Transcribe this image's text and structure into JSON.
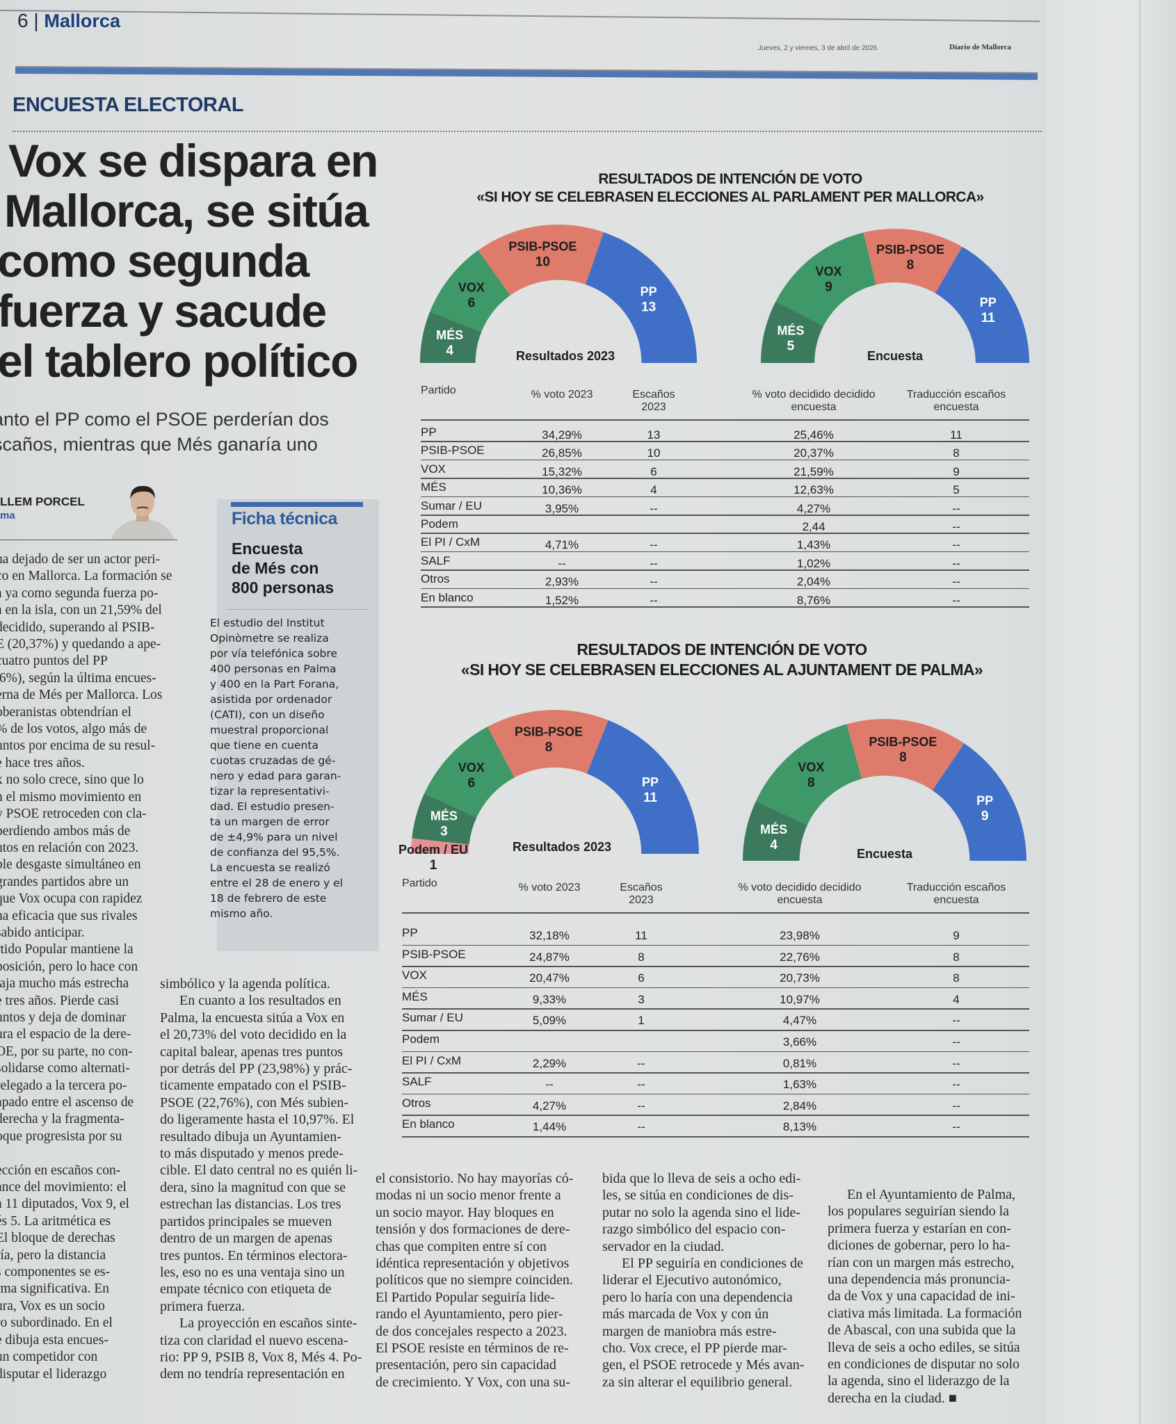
{
  "header": {
    "page_number": "6",
    "section_name": "Mallorca",
    "date": "Jueves, 2 y viernes, 3 de abril de 2026",
    "newspaper": "Diario de Mallorca"
  },
  "kicker": "ENCUESTA ELECTORAL",
  "headline": [
    "Vox se dispara en",
    "Mallorca, se sitúa",
    "como segunda",
    "fuerza y sacude",
    "el tablero político"
  ],
  "subtitle": [
    "anto el PP como el PSOE perderían dos",
    "scaños, mientras que Més ganaría uno"
  ],
  "byline": {
    "author": "LLEM PORCEL",
    "city": "ma"
  },
  "ficha": {
    "title": "Ficha técnica",
    "heading": [
      "Encuesta",
      "de Més con",
      "800 personas"
    ],
    "body": [
      "El estudio del Institut",
      "Opinòmetre se realiza",
      "por vía telefónica sobre",
      "400 personas en Palma",
      "y 400 en la Part Forana,",
      "asistida por ordenador",
      "(CATI), con un diseño",
      "muestral proporcional",
      "que tiene en cuenta",
      "cuotas cruzadas de gé-",
      "nero y edad para garan-",
      "tizar la representativi-",
      "dad. El estudio presen-",
      "ta un margen de error",
      "de ±4,9% para un nivel",
      "de confianza del 95,5%.",
      "La encuesta se realizó",
      "entre el 28 de enero y el",
      "18 de febrero de este",
      "mismo año."
    ]
  },
  "columns": {
    "col1": [
      "ha dejado de ser un actor peri-",
      "co en Mallorca. La formación se",
      "a ya como segunda fuerza po-",
      "a en la isla, con un 21,59% del",
      "decidido, superando al PSIB-",
      "E (20,37%) y quedando a ape-",
      "cuatro puntos del PP",
      ",6%), según la última encues-",
      "erna de Més per Mallorca. Los",
      "oberanistas obtendrían el",
      "% de los votos, algo más de",
      "untos por encima de su resul-",
      "e hace tres años.",
      "x no solo crece, sino que lo",
      "n el mismo movimiento en",
      "y PSOE retroceden con cla-",
      "perdiendo ambos más de",
      "ntos en relación con 2023.",
      "ble desgaste simultáneo en",
      "grandes partidos abre un",
      "que Vox ocupa con rapidez",
      "na eficacia que sus rivales",
      "sabido anticipar.",
      "rtido Popular mantiene la",
      "posición, pero lo hace con",
      "taja mucho más estrecha",
      "e tres años. Pierde casi",
      "untos y deja de dominar",
      "ura el espacio de la dere-",
      "OE, por su parte, no con-",
      "solidarse como alternati-",
      "relegado a la tercera po-",
      "apado entre el ascenso de",
      "derecha y la fragmenta-",
      "oque progresista por su",
      "",
      "ección en escaños con-",
      "ance del movimiento: el",
      "a 11 diputados, Vox 9, el",
      "és 5. La aritmética es",
      "El bloque de derechas",
      "ría, pero la distancia",
      "s componentes se es-",
      "rma significativa. En",
      "ura, Vox es un socio",
      "ro subordinado. En el",
      "e dibuja esta encues-",
      "un competidor con",
      "disputar el liderazgo"
    ],
    "col2": [
      "simbólico y la agenda política.",
      ">En cuanto a los resultados en",
      "Palma, la encuesta sitúa a Vox en",
      "el 20,73% del voto decidido en la",
      "capital balear, apenas tres puntos",
      "por detrás del PP (23,98%) y prác-",
      "ticamente empatado con el PSIB-",
      "PSOE (22,76%), con Més subien-",
      "do ligeramente hasta el 10,97%. El",
      "resultado dibuja un Ayuntamien-",
      "to más disputado y menos prede-",
      "cible. El dato central no es quién li-",
      "dera, sino la magnitud con que se",
      "estrechan las distancias. Los tres",
      "partidos principales se mueven",
      "dentro de un margen de apenas",
      "tres puntos. En términos electora-",
      "les, eso no es una ventaja sino un",
      "empate técnico con etiqueta de",
      "primera fuerza.",
      ">La proyección en escaños sinte-",
      "tiza con claridad el nuevo escena-",
      "rio: PP 9, PSIB 8, Vox 8, Més 4. Po-",
      "dem no tendría representación en"
    ],
    "col3": [
      "el consistorio. No hay mayorías có-",
      "modas ni un socio menor frente a",
      "un socio mayor. Hay bloques en",
      "tensión y dos formaciones de dere-",
      "chas que compiten entre sí con",
      "idéntica representación y objetivos",
      "políticos que no siempre coinciden.",
      "El Partido Popular seguiría lide-",
      "rando el Ayuntamiento, pero pier-",
      "de dos concejales respecto a 2023.",
      "El PSOE resiste en términos de re-",
      "presentación, pero sin capacidad",
      "de crecimiento. Y Vox, con una su-"
    ],
    "col4": [
      "bida que lo lleva de seis a ocho edi-",
      "les, se sitúa en condiciones de dis-",
      "putar no solo la agenda sino el lide-",
      "razgo simbólico del espacio con-",
      "servador en la ciudad.",
      ">El PP seguiría en condiciones de",
      "liderar el Ejecutivo autonómico,",
      "pero lo haría con una dependencia",
      "más marcada de Vox y con ún",
      "margen de maniobra más estre-",
      "cho. Vox crece, el PP pierde mar-",
      "gen, el PSOE retrocede y Més avan-",
      "za sin alterar el equilibrio general."
    ],
    "col5": [
      ">En el Ayuntamiento de Palma,",
      "los populares seguirían siendo la",
      "primera fuerza y estarían en con-",
      "diciones de gobernar, pero lo ha-",
      "rían con un margen más estrecho,",
      "una dependencia más pronuncia-",
      "da de Vox y una capacidad de ini-",
      "ciativa más limitada. La formación",
      "de Abascal, con una subida que la",
      "lleva de seis a ocho ediles, se sitúa",
      "en condiciones de disputar no solo",
      "la agenda, sino el liderazgo de la",
      "derecha en la ciudad. ■"
    ]
  },
  "colors": {
    "MÉS": "#3b7a5c",
    "VOX": "#3e9867",
    "PSIB-PSOE": "#df7b6b",
    "PP": "#3f6fc6",
    "Podem / EU": "#e39191"
  },
  "chart_data": [
    {
      "type": "hemicycle",
      "title": "RESULTADOS DE INTENCIÓN DE VOTO",
      "subtitle": "«SI HOY SE CELEBRASEN ELECCIONES AL PARLAMENT PER MALLORCA»",
      "charts": [
        {
          "label": "Resultados 2023",
          "seats": [
            {
              "party": "MÉS",
              "seats": 4
            },
            {
              "party": "VOX",
              "seats": 6
            },
            {
              "party": "PSIB-PSOE",
              "seats": 10
            },
            {
              "party": "PP",
              "seats": 13
            }
          ]
        },
        {
          "label": "Encuesta",
          "seats": [
            {
              "party": "MÉS",
              "seats": 5
            },
            {
              "party": "VOX",
              "seats": 9
            },
            {
              "party": "PSIB-PSOE",
              "seats": 8
            },
            {
              "party": "PP",
              "seats": 11
            }
          ]
        }
      ],
      "table": {
        "headers": [
          "Partido",
          "% voto 2023",
          "Escaños 2023",
          "% voto decidido decidido encuesta",
          "Traducción escaños encuesta"
        ],
        "rows": [
          [
            "PP",
            "34,29%",
            "13",
            "25,46%",
            "11"
          ],
          [
            "PSIB-PSOE",
            "26,85%",
            "10",
            "20,37%",
            "8"
          ],
          [
            "VOX",
            "15,32%",
            "6",
            "21,59%",
            "9"
          ],
          [
            "MÉS",
            "10,36%",
            "4",
            "12,63%",
            "5"
          ],
          [
            "Sumar / EU",
            "3,95%",
            "--",
            "4,27%",
            "--"
          ],
          [
            "Podem",
            "",
            "",
            "2,44",
            "--"
          ],
          [
            "El PI / CxM",
            "4,71%",
            "--",
            "1,43%",
            "--"
          ],
          [
            "SALF",
            "--",
            "--",
            "1,02%",
            "--"
          ],
          [
            "Otros",
            "2,93%",
            "--",
            "2,04%",
            "--"
          ],
          [
            "En blanco",
            "1,52%",
            "--",
            "8,76%",
            "--"
          ]
        ]
      }
    },
    {
      "type": "hemicycle",
      "title": "RESULTADOS DE INTENCIÓN DE VOTO",
      "subtitle": "«SI HOY SE CELEBRASEN ELECCIONES AL AJUNTAMENT DE PALMA»",
      "charts": [
        {
          "label": "Resultados 2023",
          "seats": [
            {
              "party": "Podem / EU",
              "seats": 1
            },
            {
              "party": "MÉS",
              "seats": 3
            },
            {
              "party": "VOX",
              "seats": 6
            },
            {
              "party": "PSIB-PSOE",
              "seats": 8
            },
            {
              "party": "PP",
              "seats": 11
            }
          ]
        },
        {
          "label": "Encuesta",
          "seats": [
            {
              "party": "MÉS",
              "seats": 4
            },
            {
              "party": "VOX",
              "seats": 8
            },
            {
              "party": "PSIB-PSOE",
              "seats": 8
            },
            {
              "party": "PP",
              "seats": 9
            }
          ]
        }
      ],
      "table": {
        "headers": [
          "Partido",
          "% voto 2023",
          "Escaños 2023",
          "% voto decidido decidido encuesta",
          "Traducción escaños encuesta"
        ],
        "rows": [
          [
            "PP",
            "32,18%",
            "11",
            "23,98%",
            "9"
          ],
          [
            "PSIB-PSOE",
            "24,87%",
            "8",
            "22,76%",
            "8"
          ],
          [
            "VOX",
            "20,47%",
            "6",
            "20,73%",
            "8"
          ],
          [
            "MÉS",
            "9,33%",
            "3",
            "10,97%",
            "4"
          ],
          [
            "Sumar / EU",
            "5,09%",
            "1",
            "4,47%",
            "--"
          ],
          [
            "Podem",
            "",
            "",
            "3,66%",
            "--"
          ],
          [
            "El PI / CxM",
            "2,29%",
            "--",
            "0,81%",
            "--"
          ],
          [
            "SALF",
            "--",
            "--",
            "1,63%",
            "--"
          ],
          [
            "Otros",
            "4,27%",
            "--",
            "2,84%",
            "--"
          ],
          [
            "En blanco",
            "1,44%",
            "--",
            "8,13%",
            "--"
          ]
        ]
      }
    }
  ]
}
